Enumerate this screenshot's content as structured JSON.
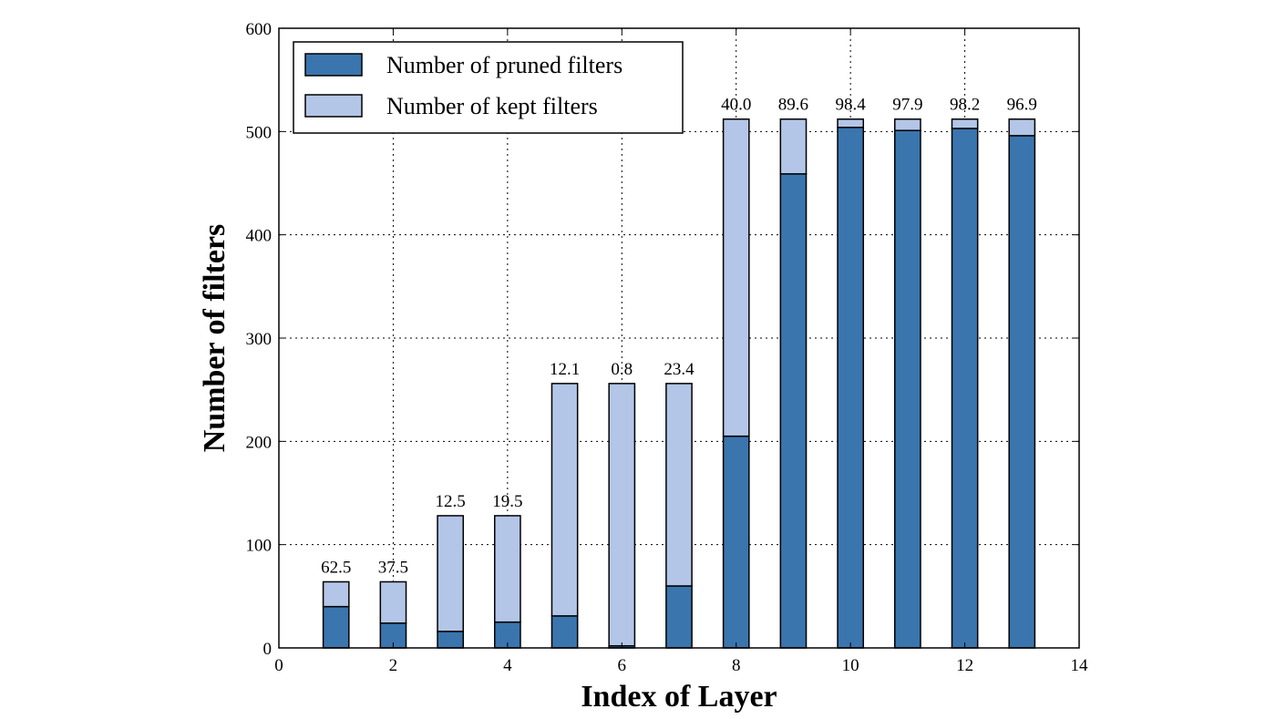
{
  "chart_data": {
    "type": "bar",
    "stacked": true,
    "xlabel": "Index of Layer",
    "ylabel": "Number of filters",
    "xlim": [
      0,
      14
    ],
    "ylim": [
      0,
      600
    ],
    "xticks": [
      0,
      2,
      4,
      6,
      8,
      10,
      12,
      14
    ],
    "yticks": [
      0,
      100,
      200,
      300,
      400,
      500,
      600
    ],
    "grid": true,
    "legend_position": "top-left",
    "x": [
      1,
      2,
      3,
      4,
      5,
      6,
      7,
      8,
      9,
      10,
      11,
      12,
      13
    ],
    "series": [
      {
        "name": "Number of pruned filters",
        "color": "#3a75ae",
        "values": [
          40,
          24,
          16,
          25,
          31,
          2,
          60,
          205,
          459,
          504,
          501,
          503,
          496
        ]
      },
      {
        "name": "Number of kept filters",
        "color": "#b3c6e7",
        "values": [
          24,
          40,
          112,
          103,
          225,
          254,
          196,
          307,
          53,
          8,
          11,
          9,
          16
        ]
      }
    ],
    "bar_labels": [
      "62.5",
      "37.5",
      "12.5",
      "19.5",
      "12.1",
      "0.8",
      "23.4",
      "40.0",
      "89.6",
      "98.4",
      "97.9",
      "98.2",
      "96.9"
    ]
  }
}
